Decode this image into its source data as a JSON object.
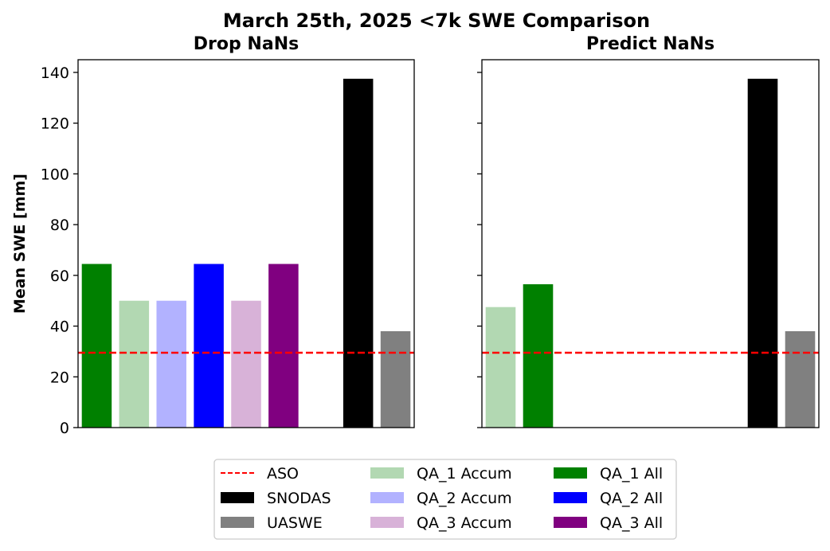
{
  "suptitle": "March 25th, 2025 <7k SWE Comparison",
  "ylabel": "Mean SWE [mm]",
  "chart_data": [
    {
      "type": "bar",
      "title": "Drop NaNs",
      "ylabel": "Mean SWE [mm]",
      "ylim": [
        0,
        145
      ],
      "yticks": [
        0,
        20,
        40,
        60,
        80,
        100,
        120,
        140
      ],
      "xlim": [
        -0.5,
        8.5
      ],
      "reference_line": {
        "name": "ASO",
        "value": 29.5,
        "color": "#ff0000",
        "style": "dashed"
      },
      "bars": [
        {
          "name": "QA_1 All",
          "x": 0,
          "value": 64.5,
          "color": "#008000"
        },
        {
          "name": "QA_1 Accum",
          "x": 1,
          "value": 50,
          "color": "#b2d8b2"
        },
        {
          "name": "QA_2 Accum",
          "x": 2,
          "value": 50,
          "color": "#b2b2ff"
        },
        {
          "name": "QA_2 All",
          "x": 3,
          "value": 64.5,
          "color": "#0000ff"
        },
        {
          "name": "QA_3 Accum",
          "x": 4,
          "value": 50,
          "color": "#d8b2d8"
        },
        {
          "name": "QA_3 All",
          "x": 5,
          "value": 64.5,
          "color": "#800080"
        },
        {
          "name": "SNODAS",
          "x": 7,
          "value": 137.5,
          "color": "#000000"
        },
        {
          "name": "UASWE",
          "x": 8,
          "value": 38,
          "color": "#808080"
        }
      ],
      "grid": false
    },
    {
      "type": "bar",
      "title": "Predict NaNs",
      "ylim": [
        0,
        145
      ],
      "yticks": [
        0,
        20,
        40,
        60,
        80,
        100,
        120,
        140
      ],
      "xlim": [
        -0.5,
        8.5
      ],
      "reference_line": {
        "name": "ASO",
        "value": 29.5,
        "color": "#ff0000",
        "style": "dashed"
      },
      "bars": [
        {
          "name": "QA_1 Accum",
          "x": 0,
          "value": 47.5,
          "color": "#b2d8b2"
        },
        {
          "name": "QA_1 All",
          "x": 1,
          "value": 56.5,
          "color": "#008000"
        },
        {
          "name": "SNODAS",
          "x": 7,
          "value": 137.5,
          "color": "#000000"
        },
        {
          "name": "UASWE",
          "x": 8,
          "value": 38,
          "color": "#808080"
        }
      ],
      "grid": false
    }
  ],
  "legend": {
    "placement": "bottom-center",
    "columns": 3,
    "entries": [
      {
        "label": "ASO",
        "kind": "line",
        "color": "#ff0000"
      },
      {
        "label": "SNODAS",
        "kind": "patch",
        "color": "#000000"
      },
      {
        "label": "UASWE",
        "kind": "patch",
        "color": "#808080"
      },
      {
        "label": "QA_1 Accum",
        "kind": "patch",
        "color": "#b2d8b2"
      },
      {
        "label": "QA_2 Accum",
        "kind": "patch",
        "color": "#b2b2ff"
      },
      {
        "label": "QA_3 Accum",
        "kind": "patch",
        "color": "#d8b2d8"
      },
      {
        "label": "QA_1 All",
        "kind": "patch",
        "color": "#008000"
      },
      {
        "label": "QA_2 All",
        "kind": "patch",
        "color": "#0000ff"
      },
      {
        "label": "QA_3 All",
        "kind": "patch",
        "color": "#800080"
      }
    ]
  }
}
